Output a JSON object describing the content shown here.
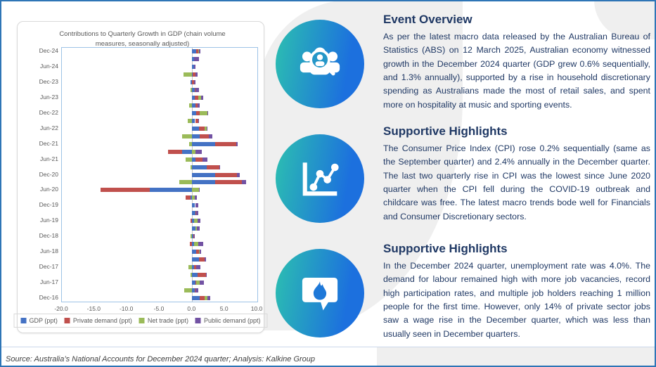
{
  "chart": {
    "title": "Contributions to Quarterly Growth in GDP (chain volume measures, seasonally adjusted)"
  },
  "chart_data": {
    "type": "bar",
    "orientation": "horizontal-stacked",
    "title": "Contributions to Quarterly Growth in GDP (chain volume measures, seasonally adjusted)",
    "xlim": [
      -20.0,
      10.0
    ],
    "x_ticks": [
      "-20.0",
      "-15.0",
      "-10.0",
      "-5.0",
      "0.0",
      "5.0",
      "10.0"
    ],
    "grid": "zero-line-only",
    "legend_position": "bottom",
    "categories": [
      "Dec-16",
      "Mar-17",
      "Jun-17",
      "Sep-17",
      "Dec-17",
      "Mar-18",
      "Jun-18",
      "Sep-18",
      "Dec-18",
      "Mar-19",
      "Jun-19",
      "Sep-19",
      "Dec-19",
      "Mar-20",
      "Jun-20",
      "Sep-20",
      "Dec-20",
      "Mar-21",
      "Jun-21",
      "Sep-21",
      "Dec-21",
      "Mar-22",
      "Jun-22",
      "Sep-22",
      "Dec-22",
      "Mar-23",
      "Jun-23",
      "Sep-23",
      "Dec-23",
      "Mar-24",
      "Jun-24",
      "Sep-24",
      "Dec-24"
    ],
    "visible_y_labels": [
      "Dec-24",
      "Jun-24",
      "Dec-23",
      "Jun-23",
      "Dec-22",
      "Jun-22",
      "Dec-21",
      "Jun-21",
      "Dec-20",
      "Jun-20",
      "Dec-19",
      "Jun-19",
      "Dec-18",
      "Jun-18",
      "Dec-17",
      "Jun-17",
      "Dec-16"
    ],
    "series": [
      {
        "name": "GDP (ppt)",
        "color": "#4472C4",
        "values": [
          1.1,
          0.4,
          0.55,
          0.8,
          0.3,
          1.0,
          0.65,
          0.25,
          0.2,
          0.5,
          0.3,
          0.5,
          0.45,
          -0.2,
          -6.5,
          3.5,
          3.5,
          2.2,
          0.55,
          -1.55,
          3.5,
          1.1,
          1.0,
          0.45,
          0.6,
          0.5,
          0.4,
          0.4,
          -0.2,
          0.1,
          0.3,
          0.3,
          0.6
        ]
      },
      {
        "name": "Private demand (ppt)",
        "color": "#C0504D",
        "values": [
          0.8,
          0.05,
          0.05,
          1.3,
          0.35,
          0.9,
          0.35,
          -0.35,
          0.05,
          0.05,
          -0.3,
          0.1,
          0.05,
          -0.85,
          -7.6,
          4.1,
          3.4,
          1.95,
          1.0,
          -2.2,
          3.3,
          1.5,
          0.9,
          0.45,
          0.5,
          0.35,
          0.5,
          0.15,
          0.3,
          0.4,
          0.0,
          0.0,
          0.3
        ]
      },
      {
        "name": "Net trade (ppt)",
        "color": "#9BBB59",
        "values": [
          0.45,
          -1.2,
          0.55,
          -0.3,
          -0.6,
          0.05,
          0.2,
          0.7,
          -0.3,
          0.2,
          0.5,
          0.0,
          0.0,
          0.4,
          1.0,
          -2.0,
          0.0,
          -0.2,
          -1.0,
          0.55,
          -0.5,
          -1.55,
          0.3,
          -0.65,
          1.2,
          -0.45,
          0.5,
          -0.3,
          0.0,
          -1.3,
          0.0,
          0.0,
          0.1
        ]
      },
      {
        "name": "Public demand (ppt)",
        "color": "#7252A3",
        "values": [
          0.4,
          0.5,
          0.7,
          0.05,
          0.6,
          0.05,
          0.05,
          0.7,
          0.2,
          0.35,
          0.5,
          0.35,
          0.4,
          0.35,
          0.2,
          0.65,
          0.4,
          0.1,
          0.8,
          0.95,
          0.1,
          0.45,
          0.05,
          0.05,
          0.05,
          0.35,
          0.3,
          0.5,
          0.1,
          0.3,
          0.2,
          0.7,
          0.3
        ]
      }
    ]
  },
  "sections": [
    {
      "heading": "Event Overview",
      "body": "As per the latest macro data released by the Australian Bureau of Statistics (ABS) on 12 March 2025, Australian economy witnessed growth in the December 2024 quarter (GDP grew 0.6% sequentially, and 1.3% annually), supported by a rise in household discretionary spending as Australians made the most of retail sales, and spent more on hospitality at music and sporting events."
    },
    {
      "heading": "Supportive Highlights",
      "body": "The Consumer Price Index (CPI) rose 0.2% sequentially (same as the September quarter) and 2.4% annually in the December quarter. The last two quarterly rise in CPI was the lowest since June 2020 quarter when the CPI fell during the COVID-19 outbreak and childcare was free. The latest macro trends bode well for Financials and Consumer Discretionary sectors."
    },
    {
      "heading": "Supportive Highlights",
      "body": "In the December 2024 quarter, unemployment rate was 4.0%. The demand for labour remained high with more job vacancies, record high participation rates, and multiple job holders reaching 1 million people for the first time. However, only 14% of private sector jobs saw a wage rise in the December quarter, which was less than usually seen in December quarters."
    }
  ],
  "icons": [
    {
      "name": "people-search-icon"
    },
    {
      "name": "line-chart-icon"
    },
    {
      "name": "flame-message-icon"
    }
  ],
  "footer": {
    "source": "Source: Australia’s National Accounts for December 2024 quarter; Analysis: Kalkine Group"
  },
  "colors": {
    "accent_border": "#2E75B6",
    "heading_navy": "#1F3864",
    "icon_gradient_start": "#2CC0B0",
    "icon_gradient_end": "#1C70DE",
    "plot_border": "#9DC3E6",
    "blob_gray": "#EFEFEF"
  }
}
